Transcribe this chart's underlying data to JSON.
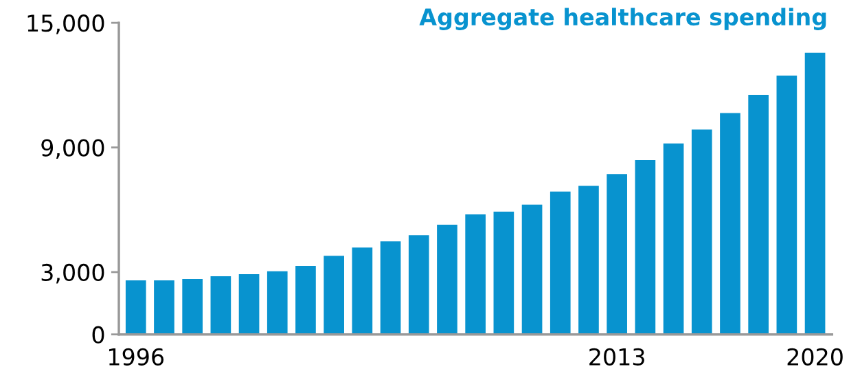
{
  "chart_data": {
    "type": "bar",
    "title": "Aggregate healthcare spending",
    "categories": [
      "1996",
      null,
      null,
      null,
      null,
      null,
      null,
      null,
      null,
      null,
      null,
      null,
      null,
      null,
      null,
      null,
      null,
      "2013",
      null,
      null,
      null,
      null,
      null,
      null,
      "2020"
    ],
    "values": [
      2600,
      2600,
      2670,
      2800,
      2900,
      3040,
      3300,
      3780,
      4180,
      4480,
      4780,
      5280,
      5780,
      5910,
      6250,
      6880,
      7150,
      7720,
      8390,
      9190,
      9860,
      10660,
      11530,
      12460,
      13560
    ],
    "color": "#0893cf",
    "ylim": [
      0,
      15000
    ],
    "yticks": [
      {
        "value": 0,
        "label": "0"
      },
      {
        "value": 3000,
        "label": "3,000"
      },
      {
        "value": 9000,
        "label": "9,000"
      },
      {
        "value": 15000,
        "label": "15,000"
      }
    ],
    "grid": false
  }
}
